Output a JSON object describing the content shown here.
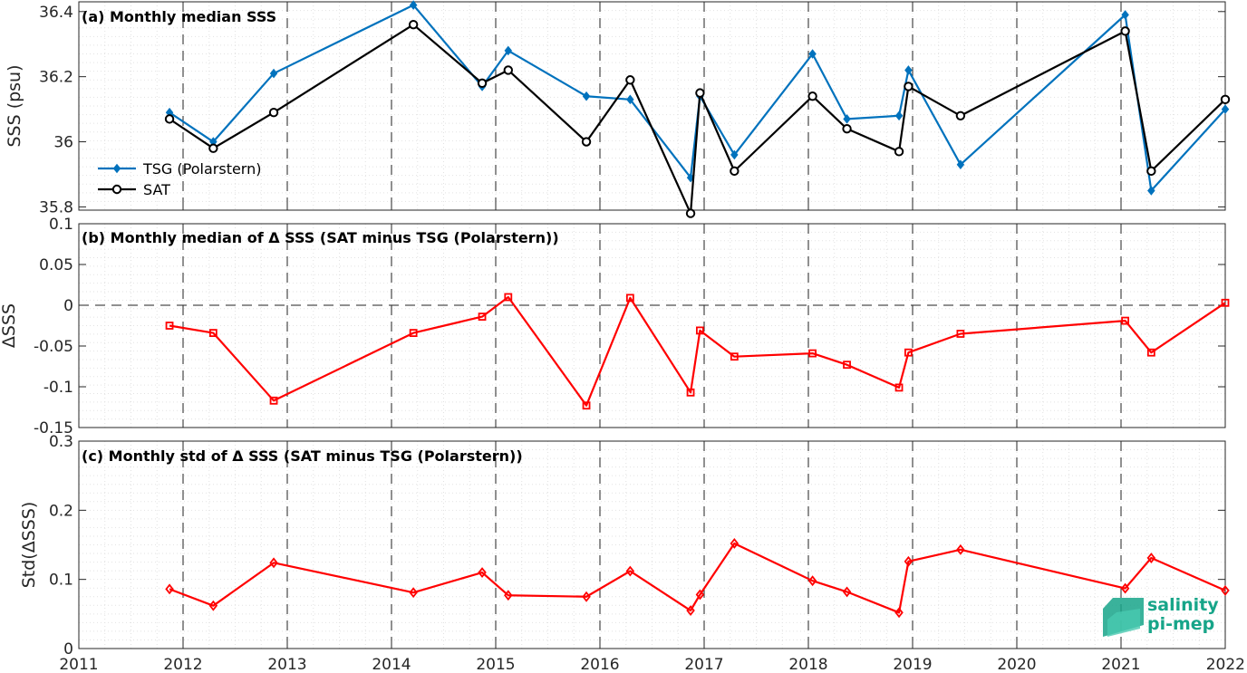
{
  "x_ticks": [
    "2011",
    "2012",
    "2013",
    "2014",
    "2015",
    "2016",
    "2017",
    "2018",
    "2019",
    "2020",
    "2021",
    "2022"
  ],
  "logo": {
    "line1": "salinity",
    "line2": "pi-mep"
  },
  "colors": {
    "tsg": "#0072bd",
    "sat": "#000000",
    "delta": "#ff0000"
  },
  "chart_data": [
    {
      "type": "line",
      "title": "(a) Monthly median SSS",
      "ylabel": "SSS (psu)",
      "xlim": [
        2011.0,
        2022.0
      ],
      "ylim": [
        35.79,
        36.43
      ],
      "yticks": [
        35.8,
        36.0,
        36.2,
        36.4
      ],
      "ytick_labels": [
        "35.8",
        "36",
        "36.2",
        "36.4"
      ],
      "grid": true,
      "legend_position": "lower-left",
      "x": [
        2011.87,
        2012.29,
        2012.87,
        2014.21,
        2014.87,
        2015.12,
        2015.87,
        2016.29,
        2016.87,
        2016.96,
        2017.29,
        2018.04,
        2018.37,
        2018.87,
        2018.96,
        2019.46,
        2021.04,
        2021.29,
        2022.0
      ],
      "series": [
        {
          "name": "TSG (Polarstern)",
          "marker": "diamond",
          "values": [
            36.09,
            36.0,
            36.21,
            36.42,
            36.17,
            36.28,
            36.14,
            36.13,
            35.89,
            36.14,
            35.96,
            36.27,
            36.07,
            36.08,
            36.22,
            35.93,
            36.39,
            35.85,
            36.1
          ]
        },
        {
          "name": "SAT",
          "marker": "circle",
          "values": [
            36.07,
            35.98,
            36.09,
            36.36,
            36.18,
            36.22,
            36.0,
            36.19,
            35.78,
            36.15,
            35.91,
            36.14,
            36.04,
            35.97,
            36.17,
            36.08,
            36.34,
            35.91,
            36.13
          ]
        }
      ]
    },
    {
      "type": "line",
      "title": "(b) Monthly median of Δ SSS (SAT minus TSG (Polarstern))",
      "ylabel": "ΔSSS",
      "xlim": [
        2011.0,
        2022.0
      ],
      "ylim": [
        -0.15,
        0.1
      ],
      "yticks": [
        -0.15,
        -0.1,
        -0.05,
        0,
        0.05,
        0.1
      ],
      "ytick_labels": [
        "-0.15",
        "-0.1",
        "-0.05",
        "0",
        "0.05",
        "0.1"
      ],
      "grid": true,
      "x": [
        2011.87,
        2012.29,
        2012.87,
        2014.21,
        2014.87,
        2015.12,
        2015.87,
        2016.29,
        2016.87,
        2016.96,
        2017.29,
        2018.04,
        2018.37,
        2018.87,
        2018.96,
        2019.46,
        2021.04,
        2021.29,
        2022.0
      ],
      "series": [
        {
          "name": "",
          "marker": "square",
          "values": [
            -0.025,
            -0.034,
            -0.117,
            -0.034,
            -0.014,
            0.01,
            -0.123,
            0.009,
            -0.107,
            -0.031,
            -0.063,
            -0.059,
            -0.073,
            -0.101,
            -0.058,
            -0.035,
            -0.019,
            -0.058,
            0.003
          ]
        }
      ]
    },
    {
      "type": "line",
      "title": "(c) Monthly std of Δ SSS (SAT minus TSG (Polarstern))",
      "ylabel": "Std(ΔSSS)",
      "xlim": [
        2011.0,
        2022.0
      ],
      "ylim": [
        0,
        0.3
      ],
      "yticks": [
        0,
        0.1,
        0.2,
        0.3
      ],
      "ytick_labels": [
        "0",
        "0.1",
        "0.2",
        "0.3"
      ],
      "grid": true,
      "x": [
        2011.87,
        2012.29,
        2012.87,
        2014.21,
        2014.87,
        2015.12,
        2015.87,
        2016.29,
        2016.87,
        2016.96,
        2017.29,
        2018.04,
        2018.37,
        2018.87,
        2018.96,
        2019.46,
        2021.04,
        2021.29,
        2022.0
      ],
      "series": [
        {
          "name": "",
          "marker": "diamond",
          "values": [
            0.086,
            0.062,
            0.124,
            0.081,
            0.11,
            0.077,
            0.075,
            0.112,
            0.055,
            0.078,
            0.152,
            0.098,
            0.082,
            0.052,
            0.126,
            0.143,
            0.087,
            0.131,
            0.084
          ]
        }
      ]
    }
  ]
}
